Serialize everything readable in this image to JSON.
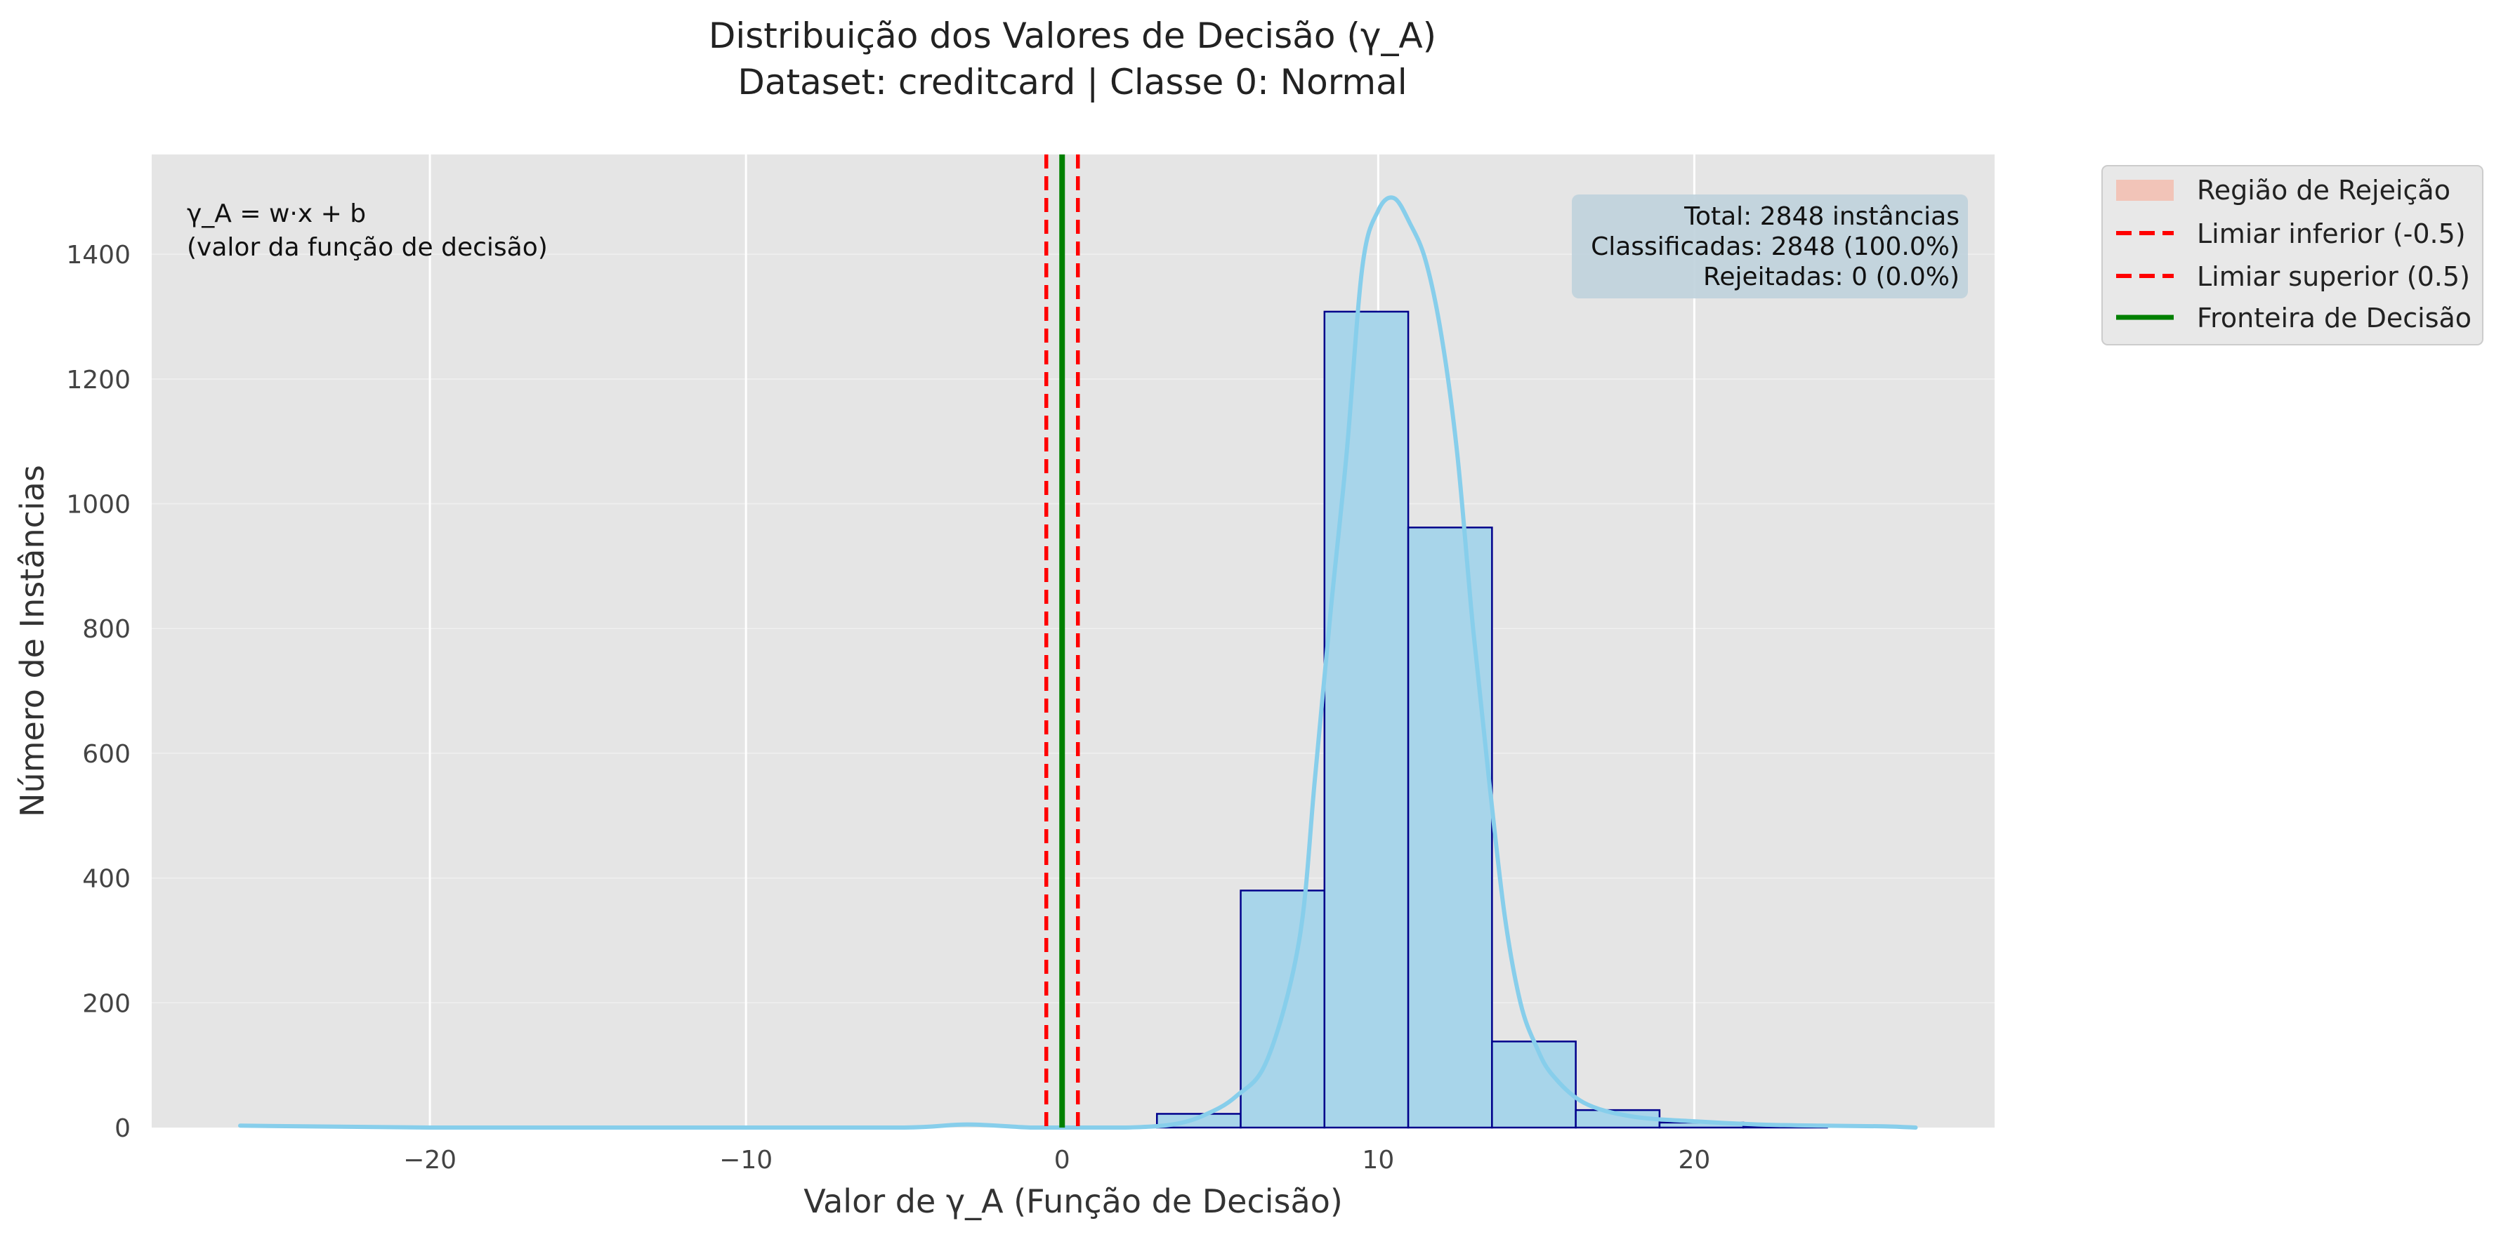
{
  "chart_data": {
    "type": "bar",
    "title": "Distribuição dos Valores de Decisão (γ_A)",
    "subtitle": "Dataset: creditcard | Classe 0: Normal",
    "xlabel": "Valor de γ_A (Função de Decisão)",
    "ylabel": "Número de Instâncias",
    "xlim": [
      -28.8,
      29.5
    ],
    "ylim": [
      0,
      1560
    ],
    "xticks": [
      -20,
      -10,
      0,
      10,
      20
    ],
    "xtick_labels": [
      "−20",
      "−10",
      "0",
      "10",
      "20"
    ],
    "yticks": [
      0,
      200,
      400,
      600,
      800,
      1000,
      1200,
      1400
    ],
    "grid": true,
    "legend_position": "outside-upper-right",
    "bins": [
      {
        "x0": 3.0,
        "x1": 5.65,
        "count": 22
      },
      {
        "x0": 5.65,
        "x1": 8.3,
        "count": 380
      },
      {
        "x0": 8.3,
        "x1": 10.95,
        "count": 1308
      },
      {
        "x0": 10.95,
        "x1": 13.6,
        "count": 962
      },
      {
        "x0": 13.6,
        "x1": 16.25,
        "count": 138
      },
      {
        "x0": 16.25,
        "x1": 18.9,
        "count": 28
      },
      {
        "x0": 18.9,
        "x1": 21.55,
        "count": 8
      },
      {
        "x0": 21.55,
        "x1": 24.2,
        "count": 2
      }
    ],
    "kde": {
      "x": [
        -26,
        -20,
        -10,
        -5,
        -3,
        -1,
        0,
        2,
        3.5,
        4.5,
        5.5,
        6.5,
        7.5,
        8.0,
        8.5,
        9.0,
        9.5,
        10.0,
        10.5,
        11.0,
        11.5,
        12.0,
        12.5,
        13.0,
        13.5,
        14.0,
        14.5,
        15.0,
        15.5,
        16.5,
        18.0,
        20.0,
        22.0,
        24.0,
        26.0,
        27.0
      ],
      "y": [
        3,
        0,
        0,
        0,
        5,
        0,
        0,
        0,
        5,
        20,
        50,
        110,
        300,
        560,
        830,
        1080,
        1380,
        1470,
        1490,
        1450,
        1390,
        1270,
        1080,
        800,
        560,
        340,
        200,
        130,
        85,
        40,
        18,
        10,
        5,
        3,
        2,
        0
      ]
    },
    "thresholds": {
      "lower": -0.5,
      "upper": 0.5,
      "boundary": 0
    },
    "legend": [
      {
        "label": "Região de Rejeição",
        "kind": "patch",
        "color": "#f2c4b8"
      },
      {
        "label": "Limiar inferior (-0.5)",
        "kind": "dashed",
        "color": "#ff0000"
      },
      {
        "label": "Limiar superior (0.5)",
        "kind": "dashed",
        "color": "#ff0000"
      },
      {
        "label": "Fronteira de Decisão",
        "kind": "solid",
        "color": "#008000"
      }
    ],
    "formula_lines": [
      "γ_A = w·x + b",
      "(valor da função de decisão)"
    ],
    "stats_lines": [
      "Total: 2848 instâncias",
      "Classificadas: 2848 (100.0%)",
      "Rejeitadas: 0 (0.0%)"
    ],
    "colors": {
      "bar_fill": "#a8d5ea",
      "bar_edge": "#00008b",
      "kde": "#87ceeb",
      "threshold": "#ff0000",
      "boundary": "#008000",
      "plot_bg": "#e5e5e5",
      "grid": "#ffffff",
      "stats_box": "#bfd1dc"
    }
  }
}
